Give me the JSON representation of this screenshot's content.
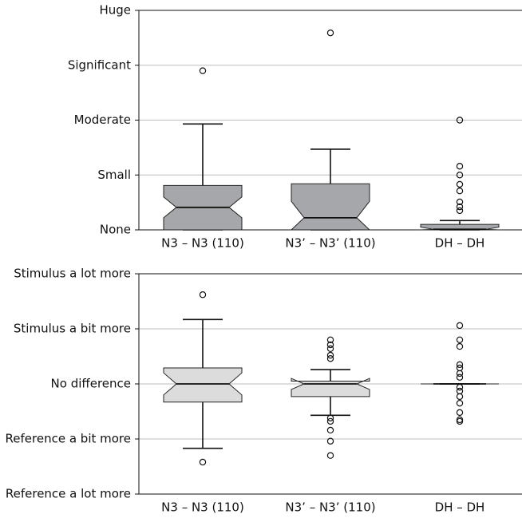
{
  "chart_data": [
    {
      "type": "box",
      "color": "#a6a7aa",
      "categories": [
        "N3 – N3 (110)",
        "N3’ – N3’ (110)",
        "DH – DH"
      ],
      "ylim": [
        0,
        4
      ],
      "yticks": [
        {
          "value": 0,
          "label": "None"
        },
        {
          "value": 1,
          "label": "Small"
        },
        {
          "value": 2,
          "label": "Moderate"
        },
        {
          "value": 3,
          "label": "Significant"
        },
        {
          "value": 4,
          "label": "Huge"
        }
      ],
      "grid": true,
      "boxes": [
        {
          "min": 0,
          "q1": 0,
          "median": 0.41,
          "q3": 0.81,
          "max": 1.93,
          "notch": [
            0.22,
            0.6
          ],
          "outliers": [
            2.9
          ]
        },
        {
          "min": 0,
          "q1": 0,
          "median": 0.22,
          "q3": 0.84,
          "max": 1.47,
          "notch": [
            0,
            0.52
          ],
          "outliers": [
            3.59
          ]
        },
        {
          "min": 0,
          "q1": 0,
          "median": 0.01,
          "q3": 0.1,
          "max": 0.17,
          "notch": [
            0,
            0.05
          ],
          "outliers": [
            2.0,
            1.16,
            1.0,
            0.83,
            0.71,
            0.51,
            0.42,
            0.35
          ]
        }
      ]
    },
    {
      "type": "box",
      "color": "#dcdcdd",
      "categories": [
        "N3 – N3 (110)",
        "N3’ – N3’ (110)",
        "DH – DH"
      ],
      "ylim": [
        -2,
        2
      ],
      "yticks": [
        {
          "value": -2,
          "label": "Reference a lot more"
        },
        {
          "value": -1,
          "label": "Reference a bit more"
        },
        {
          "value": 0,
          "label": "No difference"
        },
        {
          "value": 1,
          "label": "Stimulus a bit more"
        },
        {
          "value": 2,
          "label": "Stimulus a lot more"
        }
      ],
      "grid": true,
      "boxes": [
        {
          "min": -1.17,
          "q1": -0.33,
          "median": 0,
          "q3": 0.29,
          "max": 1.17,
          "notch": [
            -0.2,
            0.2
          ],
          "outliers": [
            1.62,
            -1.42
          ]
        },
        {
          "min": -0.57,
          "q1": -0.23,
          "median": 0,
          "q3": 0.05,
          "max": 0.26,
          "notch": [
            -0.1,
            0.1
          ],
          "outliers": [
            0.8,
            0.71,
            0.64,
            0.52,
            0.46,
            -0.62,
            -0.68,
            -0.84,
            -1.04,
            -1.3
          ]
        },
        {
          "min": 0,
          "q1": 0,
          "median": 0,
          "q3": 0,
          "max": 0,
          "notch": [
            0,
            0
          ],
          "outliers": [
            1.06,
            0.8,
            0.68,
            0.35,
            0.29,
            0.19,
            0.12,
            -0.06,
            -0.13,
            -0.23,
            -0.35,
            -0.52,
            -0.65,
            -0.68
          ]
        }
      ]
    }
  ]
}
